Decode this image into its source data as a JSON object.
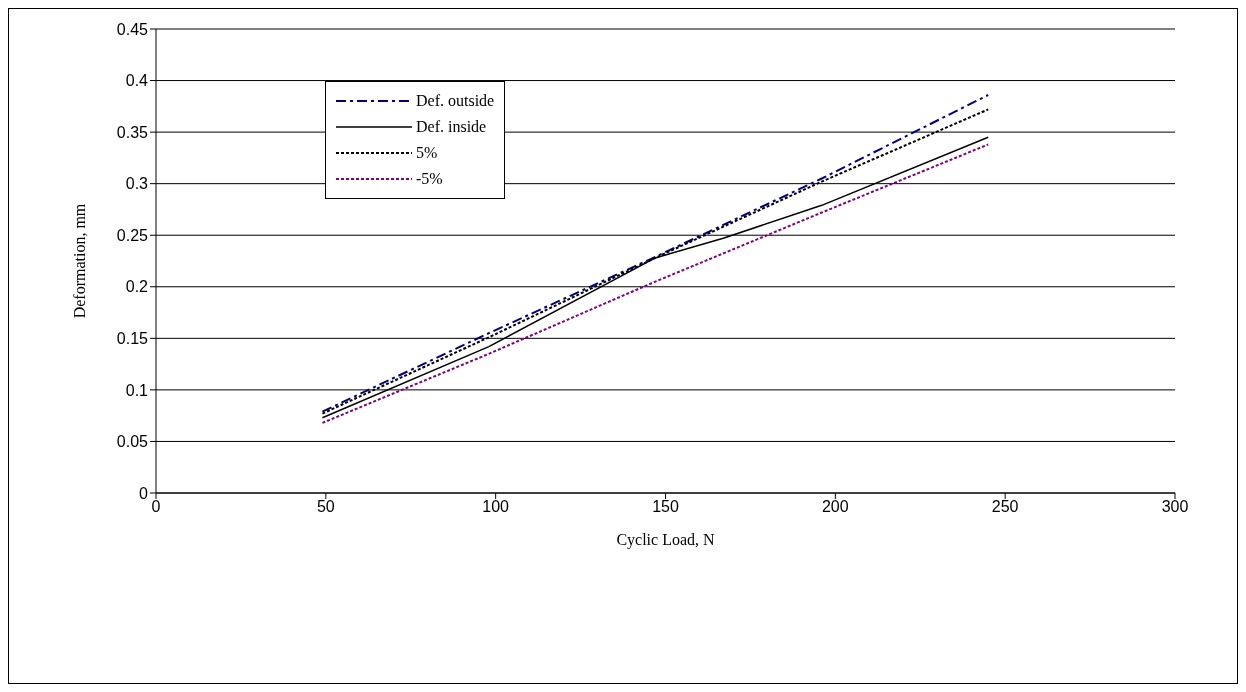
{
  "chart_data": {
    "type": "line",
    "xlabel": "Cyclic Load, N",
    "ylabel": "Deformation, mm",
    "xlim": [
      0,
      300
    ],
    "xticks": [
      0,
      50,
      100,
      150,
      200,
      250,
      300
    ],
    "ylim": [
      0,
      0.45
    ],
    "yticks": [
      0,
      0.05,
      0.1,
      0.15,
      0.2,
      0.25,
      0.3,
      0.35,
      0.4,
      0.45
    ],
    "grid": "y",
    "legend": "top left",
    "marker": "none",
    "series": [
      {
        "name": "Def. outside",
        "color": "#000080",
        "line_style": "dashed",
        "x": [
          49,
          98,
          147,
          196,
          245
        ],
        "values": [
          0.079,
          0.155,
          0.229,
          0.305,
          0.386
        ]
      },
      {
        "name": "Def. inside",
        "color": "#000000",
        "line_style": "solid",
        "x": [
          49,
          98,
          147,
          167,
          196,
          245
        ],
        "values": [
          0.073,
          0.142,
          0.228,
          0.247,
          0.279,
          0.345
        ]
      },
      {
        "name": "5%",
        "color": "#000000",
        "line_style": "dotted",
        "x": [
          49,
          98,
          147,
          196,
          245
        ],
        "values": [
          0.077,
          0.151,
          0.228,
          0.302,
          0.372
        ]
      },
      {
        "name": "-5%",
        "color": "#800080",
        "line_style": "dotted",
        "x": [
          49,
          98,
          147,
          196,
          245
        ],
        "values": [
          0.068,
          0.135,
          0.205,
          0.272,
          0.338
        ]
      }
    ]
  }
}
